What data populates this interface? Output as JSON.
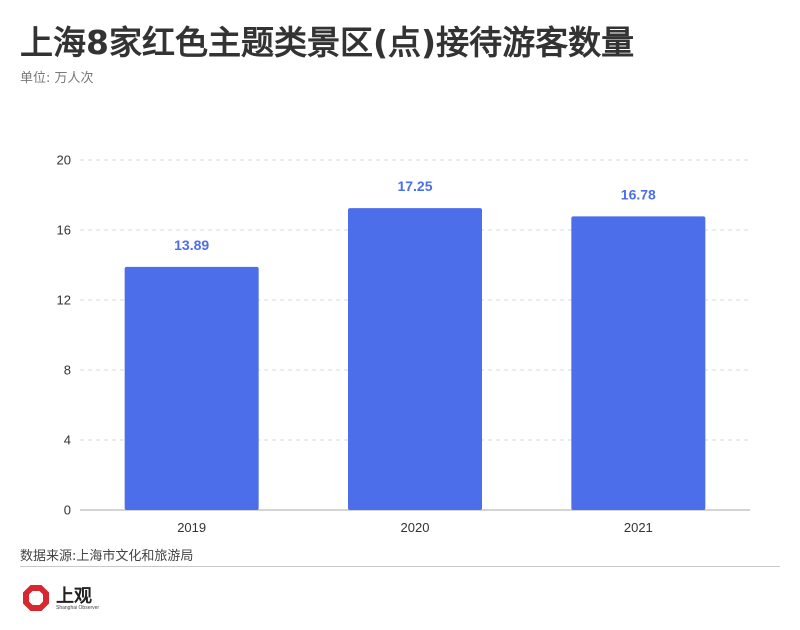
{
  "title": "上海8家红色主题类景区(点)接待游客数量",
  "subtitle": "单位: 万人次",
  "source": "数据来源:上海市文化和旅游局",
  "logo": {
    "text": "上观",
    "subtext": "Shanghai Observer"
  },
  "colors": {
    "bar": "#4d6eea",
    "value_label": "#4d6eea",
    "grid": "#d9d9d9",
    "axis": "#bbbbbb",
    "logo_red": "#d7282f"
  },
  "chart_data": {
    "type": "bar",
    "categories": [
      "2019",
      "2020",
      "2021"
    ],
    "values": [
      13.89,
      17.25,
      16.78
    ],
    "value_labels": [
      "13.89",
      "17.25",
      "16.78"
    ],
    "yticks": [
      0,
      4,
      8,
      12,
      16,
      20
    ],
    "ylim": [
      0,
      20
    ],
    "grid": true,
    "title": "上海8家红色主题类景区(点)接待游客数量",
    "ylabel": "单位: 万人次"
  }
}
